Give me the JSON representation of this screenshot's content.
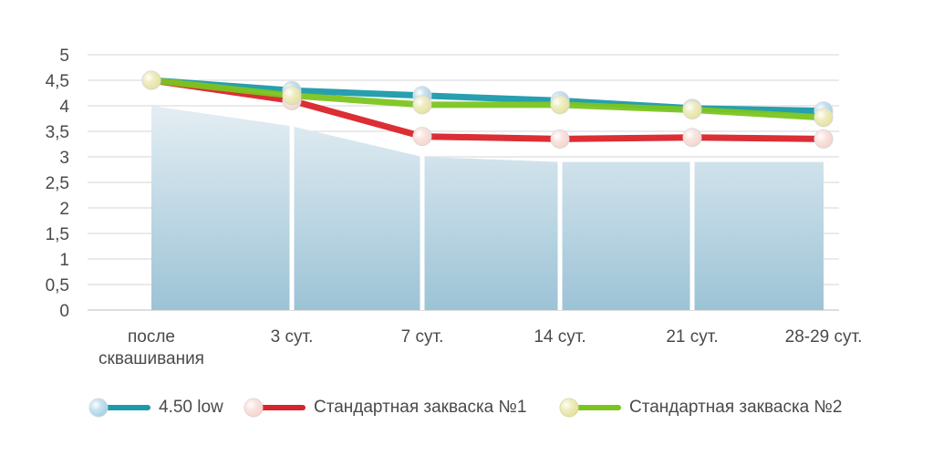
{
  "chart_data": {
    "type": "line",
    "categories": [
      "после сквашивания",
      "3 сут.",
      "7 сут.",
      "14 сут.",
      "21 сут.",
      "28-29 сут."
    ],
    "category_lines": [
      [
        "после",
        "сквашивания"
      ],
      [
        "3 сут."
      ],
      [
        "7 сут."
      ],
      [
        "14 сут."
      ],
      [
        "21 сут."
      ],
      [
        "28-29 сут."
      ]
    ],
    "ylim": [
      0,
      5
    ],
    "yticks": [
      "0",
      "0,5",
      "1",
      "1,5",
      "2",
      "2,5",
      "3",
      "3,5",
      "4",
      "4,5",
      "5"
    ],
    "grid": true,
    "background_area": {
      "values": [
        4.0,
        3.6,
        3.0,
        2.9,
        2.9,
        2.9
      ],
      "color": "#a9cfe0"
    },
    "series": [
      {
        "name": "4.50 low",
        "values": [
          4.5,
          4.3,
          4.2,
          4.1,
          3.95,
          3.9
        ],
        "color": "#1b9aaa",
        "marker_color": "#a8d4e6"
      },
      {
        "name": "Стандартная закваска №1",
        "values": [
          4.5,
          4.1,
          3.4,
          3.35,
          3.38,
          3.35
        ],
        "color": "#d9232a",
        "marker_color": "#f6d6cf"
      },
      {
        "name": "Стандартная закваска №2",
        "values": [
          4.5,
          4.2,
          4.02,
          4.02,
          3.92,
          3.77
        ],
        "color": "#7cc520",
        "marker_color": "#e6e3a0"
      }
    ],
    "legend_position": "bottom"
  }
}
